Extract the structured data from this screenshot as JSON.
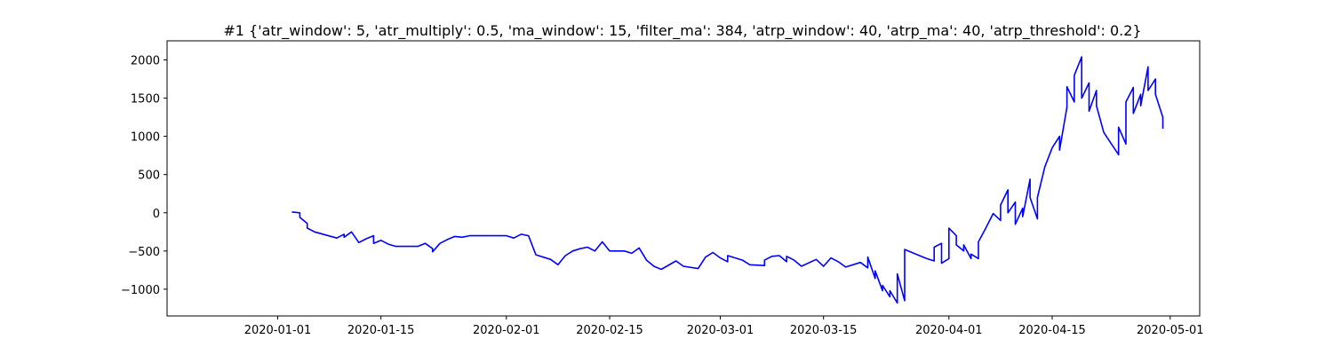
{
  "chart_data": {
    "type": "line",
    "title": "#1 {'atr_window': 5, 'atr_multiply': 0.5, 'ma_window': 15, 'filter_ma': 384, 'atrp_window': 40, 'atrp_ma': 40, 'atrp_threshold': 0.2}",
    "xlabel": "",
    "ylabel": "",
    "x_ticks": [
      "2020-01-01",
      "2020-01-15",
      "2020-02-01",
      "2020-02-15",
      "2020-03-01",
      "2020-03-15",
      "2020-04-01",
      "2020-04-15",
      "2020-05-01"
    ],
    "y_ticks": [
      2000,
      1500,
      1000,
      500,
      0,
      -500,
      -1000
    ],
    "xlim": [
      "2019-12-17",
      "2020-05-05"
    ],
    "ylim": [
      -1350,
      2250
    ],
    "grid": false,
    "series": [
      {
        "color": "#0000ff",
        "points": [
          [
            "2020-01-03",
            0
          ],
          [
            "2020-01-03",
            10
          ],
          [
            "2020-01-04",
            0
          ],
          [
            "2020-01-04",
            -60
          ],
          [
            "2020-01-05",
            -140
          ],
          [
            "2020-01-05",
            -200
          ],
          [
            "2020-01-06",
            -250
          ],
          [
            "2020-01-09",
            -330
          ],
          [
            "2020-01-10",
            -280
          ],
          [
            "2020-01-10",
            -320
          ],
          [
            "2020-01-11",
            -250
          ],
          [
            "2020-01-12",
            -390
          ],
          [
            "2020-01-13",
            -340
          ],
          [
            "2020-01-14",
            -300
          ],
          [
            "2020-01-14",
            -400
          ],
          [
            "2020-01-15",
            -360
          ],
          [
            "2020-01-16",
            -410
          ],
          [
            "2020-01-17",
            -440
          ],
          [
            "2020-01-20",
            -440
          ],
          [
            "2020-01-21",
            -400
          ],
          [
            "2020-01-22",
            -470
          ],
          [
            "2020-01-22",
            -510
          ],
          [
            "2020-01-23",
            -400
          ],
          [
            "2020-01-24",
            -350
          ],
          [
            "2020-01-25",
            -310
          ],
          [
            "2020-01-26",
            -320
          ],
          [
            "2020-01-27",
            -300
          ],
          [
            "2020-02-01",
            -300
          ],
          [
            "2020-02-02",
            -330
          ],
          [
            "2020-02-03",
            -280
          ],
          [
            "2020-02-04",
            -300
          ],
          [
            "2020-02-05",
            -550
          ],
          [
            "2020-02-07",
            -610
          ],
          [
            "2020-02-08",
            -680
          ],
          [
            "2020-02-09",
            -560
          ],
          [
            "2020-02-10",
            -500
          ],
          [
            "2020-02-11",
            -470
          ],
          [
            "2020-02-12",
            -450
          ],
          [
            "2020-02-13",
            -500
          ],
          [
            "2020-02-14",
            -380
          ],
          [
            "2020-02-15",
            -500
          ],
          [
            "2020-02-17",
            -500
          ],
          [
            "2020-02-18",
            -530
          ],
          [
            "2020-02-19",
            -460
          ],
          [
            "2020-02-20",
            -620
          ],
          [
            "2020-02-21",
            -700
          ],
          [
            "2020-02-22",
            -740
          ],
          [
            "2020-02-24",
            -630
          ],
          [
            "2020-02-25",
            -700
          ],
          [
            "2020-02-27",
            -730
          ],
          [
            "2020-02-28",
            -580
          ],
          [
            "2020-02-29",
            -520
          ],
          [
            "2020-03-01",
            -590
          ],
          [
            "2020-03-02",
            -640
          ],
          [
            "2020-03-02",
            -560
          ],
          [
            "2020-03-04",
            -620
          ],
          [
            "2020-03-05",
            -680
          ],
          [
            "2020-03-07",
            -690
          ],
          [
            "2020-03-07",
            -620
          ],
          [
            "2020-03-08",
            -570
          ],
          [
            "2020-03-09",
            -560
          ],
          [
            "2020-03-10",
            -640
          ],
          [
            "2020-03-10",
            -570
          ],
          [
            "2020-03-11",
            -620
          ],
          [
            "2020-03-12",
            -700
          ],
          [
            "2020-03-14",
            -610
          ],
          [
            "2020-03-15",
            -700
          ],
          [
            "2020-03-16",
            -590
          ],
          [
            "2020-03-17",
            -640
          ],
          [
            "2020-03-18",
            -710
          ],
          [
            "2020-03-20",
            -650
          ],
          [
            "2020-03-21",
            -720
          ],
          [
            "2020-03-21",
            -580
          ],
          [
            "2020-03-22",
            -860
          ],
          [
            "2020-03-22",
            -760
          ],
          [
            "2020-03-23",
            -1020
          ],
          [
            "2020-03-23",
            -950
          ],
          [
            "2020-03-24",
            -1100
          ],
          [
            "2020-03-24",
            -1020
          ],
          [
            "2020-03-25",
            -1180
          ],
          [
            "2020-03-25",
            -800
          ],
          [
            "2020-03-26",
            -1150
          ],
          [
            "2020-03-26",
            -480
          ],
          [
            "2020-03-28",
            -560
          ],
          [
            "2020-03-29",
            -600
          ],
          [
            "2020-03-30",
            -630
          ],
          [
            "2020-03-30",
            -450
          ],
          [
            "2020-03-31",
            -400
          ],
          [
            "2020-03-31",
            -660
          ],
          [
            "2020-04-01",
            -600
          ],
          [
            "2020-04-01",
            -200
          ],
          [
            "2020-04-02",
            -300
          ],
          [
            "2020-04-02",
            -420
          ],
          [
            "2020-04-03",
            -500
          ],
          [
            "2020-04-03",
            -420
          ],
          [
            "2020-04-04",
            -600
          ],
          [
            "2020-04-04",
            -540
          ],
          [
            "2020-04-05",
            -600
          ],
          [
            "2020-04-05",
            -380
          ],
          [
            "2020-04-06",
            -200
          ],
          [
            "2020-04-07",
            -10
          ],
          [
            "2020-04-08",
            -100
          ],
          [
            "2020-04-08",
            100
          ],
          [
            "2020-04-09",
            300
          ],
          [
            "2020-04-09",
            0
          ],
          [
            "2020-04-10",
            140
          ],
          [
            "2020-04-10",
            -150
          ],
          [
            "2020-04-11",
            60
          ],
          [
            "2020-04-11",
            -50
          ],
          [
            "2020-04-12",
            440
          ],
          [
            "2020-04-12",
            200
          ],
          [
            "2020-04-13",
            -80
          ],
          [
            "2020-04-13",
            200
          ],
          [
            "2020-04-14",
            600
          ],
          [
            "2020-04-15",
            850
          ],
          [
            "2020-04-16",
            1000
          ],
          [
            "2020-04-16",
            820
          ],
          [
            "2020-04-17",
            1380
          ],
          [
            "2020-04-17",
            1650
          ],
          [
            "2020-04-18",
            1450
          ],
          [
            "2020-04-18",
            1800
          ],
          [
            "2020-04-19",
            2040
          ],
          [
            "2020-04-19",
            1500
          ],
          [
            "2020-04-20",
            1700
          ],
          [
            "2020-04-20",
            1330
          ],
          [
            "2020-04-21",
            1600
          ],
          [
            "2020-04-21",
            1400
          ],
          [
            "2020-04-22",
            1050
          ],
          [
            "2020-04-24",
            760
          ],
          [
            "2020-04-24",
            1120
          ],
          [
            "2020-04-25",
            900
          ],
          [
            "2020-04-25",
            1450
          ],
          [
            "2020-04-26",
            1640
          ],
          [
            "2020-04-26",
            1300
          ],
          [
            "2020-04-27",
            1550
          ],
          [
            "2020-04-27",
            1400
          ],
          [
            "2020-04-28",
            1910
          ],
          [
            "2020-04-28",
            1600
          ],
          [
            "2020-04-29",
            1750
          ],
          [
            "2020-04-29",
            1550
          ],
          [
            "2020-04-30",
            1250
          ],
          [
            "2020-04-30",
            1100
          ]
        ]
      }
    ]
  }
}
